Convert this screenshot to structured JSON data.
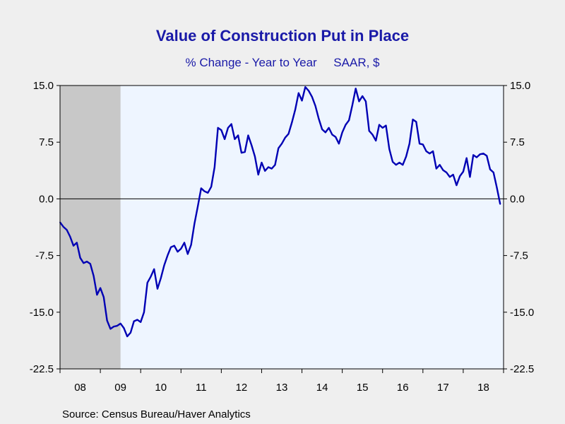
{
  "header": {
    "title": "Value of Construction Put in Place",
    "subtitle": "% Change - Year to Year     SAAR, $"
  },
  "footer": {
    "source": "Source:  Census Bureau/Haver Analytics"
  },
  "colors": {
    "line": "#0000b4",
    "plot_bg": "#eef5ff",
    "recession": "#c8c8c8",
    "page_bg": "#efefef"
  },
  "chart_data": {
    "type": "line",
    "title": "Value of Construction Put in Place",
    "subtitle": "% Change - Year to Year     SAAR, $",
    "y_ticks": [
      "15.0",
      "7.5",
      "0.0",
      "-7.5",
      "-15.0",
      "-22.5"
    ],
    "y_tick_values": [
      15.0,
      7.5,
      0.0,
      -7.5,
      -15.0,
      -22.5
    ],
    "ylim": [
      -22.5,
      15.0
    ],
    "x_tick_labels": [
      "08",
      "09",
      "10",
      "11",
      "12",
      "13",
      "14",
      "15",
      "16",
      "17",
      "18"
    ],
    "xlim": [
      "2008-01",
      "2019-01"
    ],
    "grid": false,
    "zero_line": true,
    "dual_y_axis": true,
    "recession_shading": {
      "start": "2008-01",
      "end": "2009-06"
    },
    "series": [
      {
        "x": [
          "2008-01",
          "2008-02",
          "2008-03",
          "2008-04",
          "2008-05",
          "2008-06",
          "2008-07",
          "2008-08",
          "2008-09",
          "2008-10",
          "2008-11",
          "2008-12",
          "2009-01",
          "2009-02",
          "2009-03",
          "2009-04",
          "2009-05",
          "2009-06",
          "2009-07",
          "2009-08",
          "2009-09",
          "2009-10",
          "2009-11",
          "2009-12",
          "2010-01",
          "2010-02",
          "2010-03",
          "2010-04",
          "2010-05",
          "2010-06",
          "2010-07",
          "2010-08",
          "2010-09",
          "2010-10",
          "2010-11",
          "2010-12",
          "2011-01",
          "2011-02",
          "2011-03",
          "2011-04",
          "2011-05",
          "2011-06",
          "2011-07",
          "2011-08",
          "2011-09",
          "2011-10",
          "2011-11",
          "2011-12",
          "2012-01",
          "2012-02",
          "2012-03",
          "2012-04",
          "2012-05",
          "2012-06",
          "2012-07",
          "2012-08",
          "2012-09",
          "2012-10",
          "2012-11",
          "2012-12",
          "2013-01",
          "2013-02",
          "2013-03",
          "2013-04",
          "2013-05",
          "2013-06",
          "2013-07",
          "2013-08",
          "2013-09",
          "2013-10",
          "2013-11",
          "2013-12",
          "2014-01",
          "2014-02",
          "2014-03",
          "2014-04",
          "2014-05",
          "2014-06",
          "2014-07",
          "2014-08",
          "2014-09",
          "2014-10",
          "2014-11",
          "2014-12",
          "2015-01",
          "2015-02",
          "2015-03",
          "2015-04",
          "2015-05",
          "2015-06",
          "2015-07",
          "2015-08",
          "2015-09",
          "2015-10",
          "2015-11",
          "2015-12",
          "2016-01",
          "2016-02",
          "2016-03",
          "2016-04",
          "2016-05",
          "2016-06",
          "2016-07",
          "2016-08",
          "2016-09",
          "2016-10",
          "2016-11",
          "2016-12",
          "2017-01",
          "2017-02",
          "2017-03",
          "2017-04",
          "2017-05",
          "2017-06",
          "2017-07",
          "2017-08",
          "2017-09",
          "2017-10",
          "2017-11",
          "2017-12",
          "2018-01",
          "2018-02",
          "2018-03",
          "2018-04",
          "2018-05",
          "2018-06",
          "2018-07",
          "2018-08",
          "2018-09",
          "2018-10",
          "2018-11",
          "2018-12"
        ],
        "values": [
          -3.1,
          -3.7,
          -4.1,
          -5.0,
          -6.2,
          -5.8,
          -7.8,
          -8.5,
          -8.3,
          -8.6,
          -10.2,
          -12.7,
          -11.8,
          -13.0,
          -16.1,
          -17.2,
          -16.9,
          -16.8,
          -16.5,
          -17.1,
          -18.2,
          -17.7,
          -16.2,
          -16.0,
          -16.3,
          -15.0,
          -11.1,
          -10.3,
          -9.3,
          -11.9,
          -10.5,
          -8.8,
          -7.5,
          -6.4,
          -6.2,
          -7.0,
          -6.6,
          -5.8,
          -7.3,
          -6.1,
          -3.3,
          -1.0,
          1.4,
          1.0,
          0.8,
          1.6,
          4.2,
          9.4,
          9.1,
          7.9,
          9.4,
          9.9,
          7.9,
          8.4,
          6.1,
          6.2,
          8.4,
          7.1,
          5.6,
          3.2,
          4.8,
          3.7,
          4.2,
          4.0,
          4.5,
          6.7,
          7.3,
          8.1,
          8.6,
          10.1,
          11.8,
          14.0,
          13.0,
          14.8,
          14.3,
          13.5,
          12.3,
          10.6,
          9.2,
          8.8,
          9.4,
          8.5,
          8.2,
          7.3,
          8.8,
          9.8,
          10.4,
          12.4,
          14.6,
          12.9,
          13.6,
          12.9,
          9.0,
          8.5,
          7.7,
          9.8,
          9.4,
          9.7,
          6.6,
          4.9,
          4.5,
          4.8,
          4.5,
          5.6,
          7.3,
          10.5,
          10.2,
          7.3,
          7.2,
          6.3,
          6.0,
          6.3,
          4.0,
          4.5,
          3.8,
          3.5,
          2.9,
          3.2,
          1.8,
          3.0,
          3.6,
          5.4,
          2.9,
          5.8,
          5.5,
          5.9,
          6.0,
          5.7,
          3.9,
          3.5,
          1.5,
          -0.7
        ]
      }
    ]
  }
}
